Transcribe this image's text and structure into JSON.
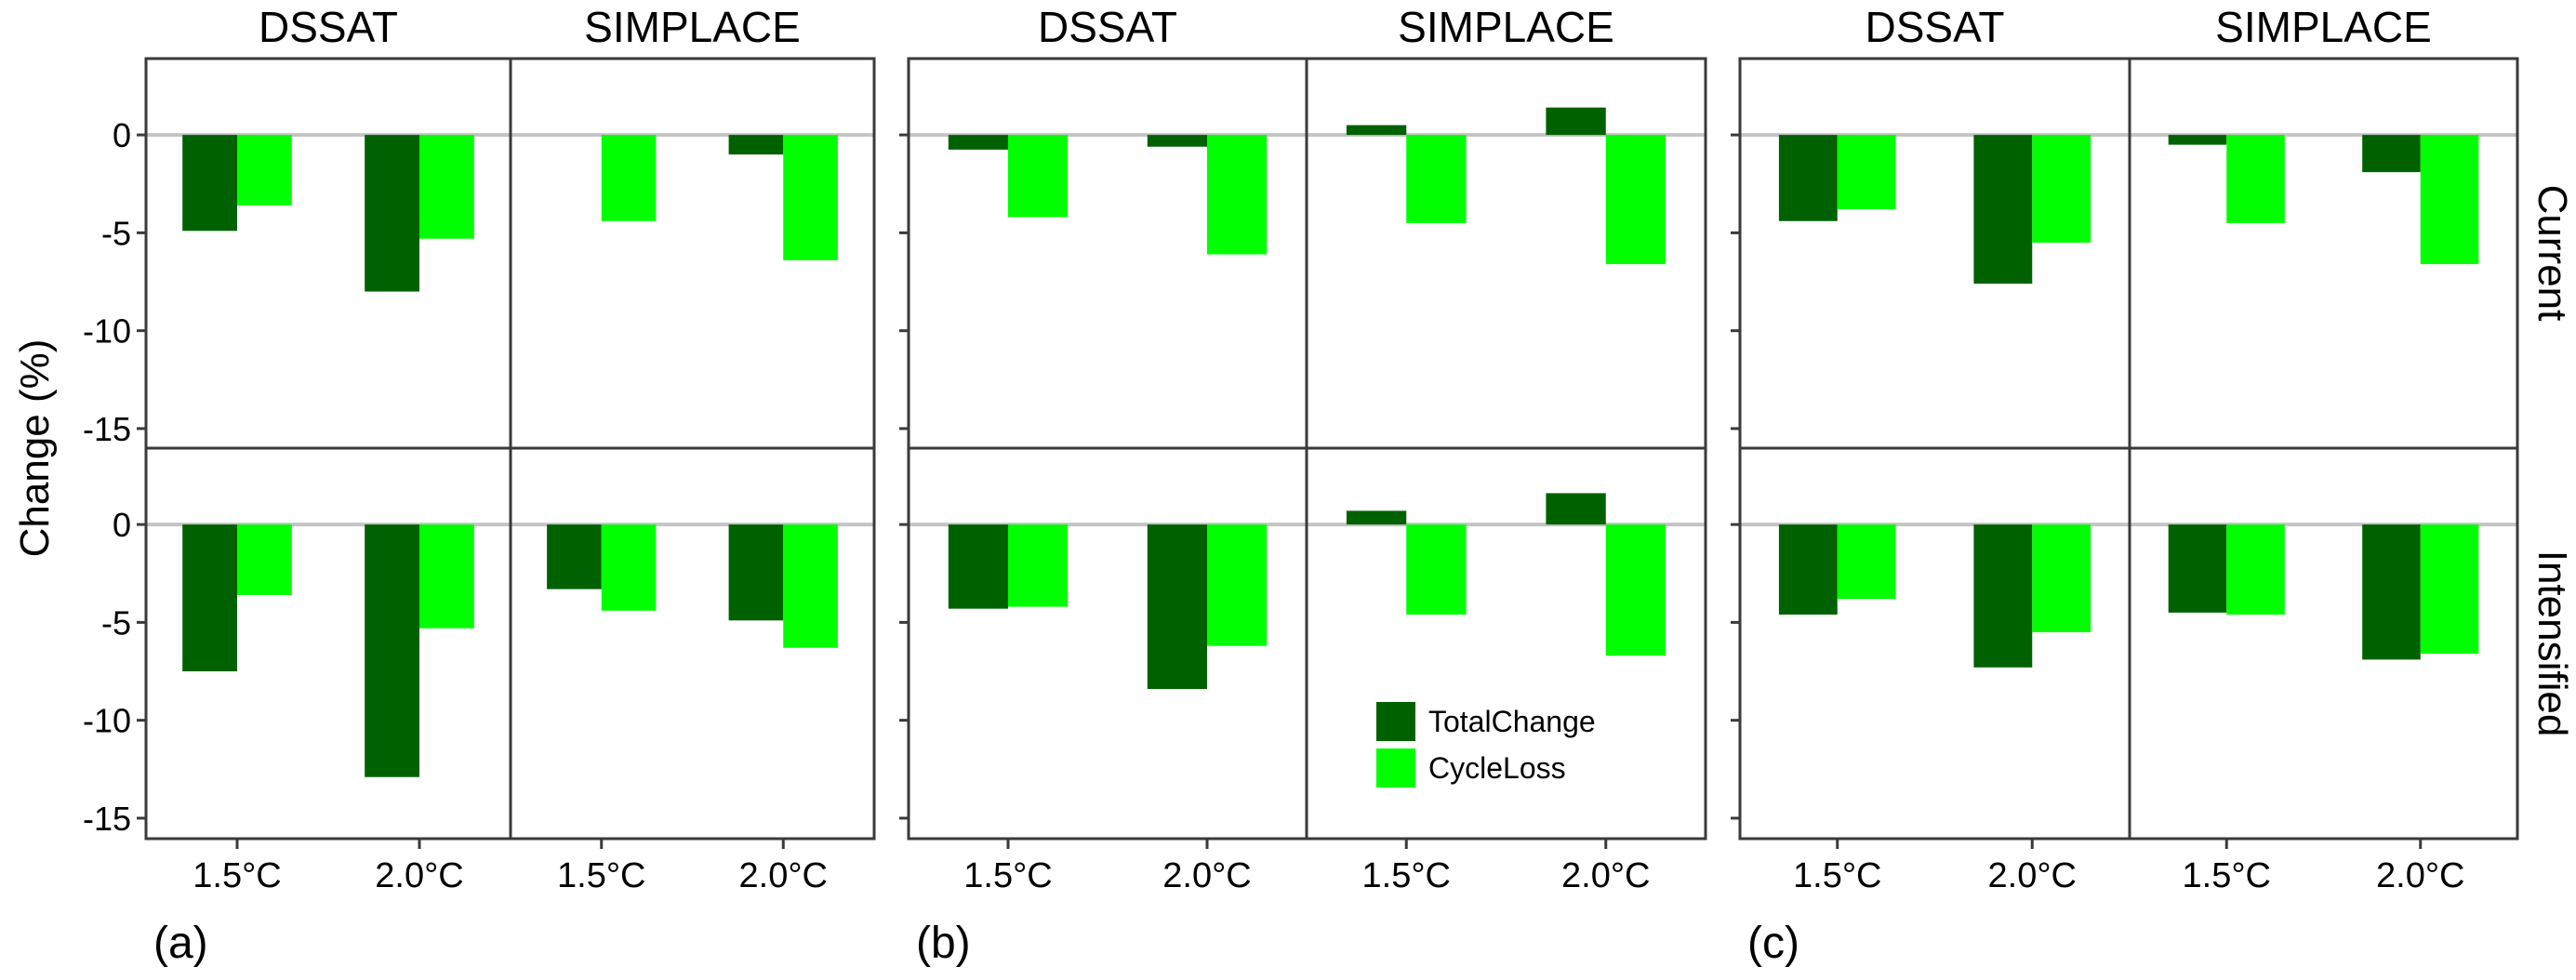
{
  "figure": {
    "y_axis_title": "Change (%)",
    "row_strips": [
      "Current",
      "Intensified"
    ],
    "col_strips": [
      "DSSAT",
      "SIMPLACE"
    ],
    "panel_tags": [
      "(a)",
      "(b)",
      "(c)"
    ],
    "legend": {
      "items": [
        {
          "label": "TotalChange",
          "color": "#006100"
        },
        {
          "label": "CycleLoss",
          "color": "#00ff00"
        }
      ]
    }
  },
  "chart_data": {
    "type": "bar",
    "layout": "faceted grouped bar chart, three panels (a),(b),(c), each a 2x2 facet grid (rows: management, cols: model)",
    "xlabel": "",
    "ylabel": "Change (%)",
    "categories": [
      "1.5°C",
      "2.0°C"
    ],
    "series_names": [
      "TotalChange",
      "CycleLoss"
    ],
    "colors": {
      "TotalChange": "#006100",
      "CycleLoss": "#00ff00"
    },
    "ylim": [
      -16,
      3.9
    ],
    "yticks": [
      0,
      -5,
      -10,
      -15
    ],
    "ytick_labels": [
      "0",
      "-5",
      "-10",
      "-15"
    ],
    "reference_line": 0,
    "grid": false,
    "legend_placement": "inside panel (b), SIMPLACE/Intensified facet, lower-left",
    "panels": [
      {
        "tag": "(a)",
        "facets": [
          {
            "model": "DSSAT",
            "management": "Current",
            "series": [
              {
                "name": "TotalChange",
                "values": [
                  -4.9,
                  -8.0
                ]
              },
              {
                "name": "CycleLoss",
                "values": [
                  -3.6,
                  -5.3
                ]
              }
            ]
          },
          {
            "model": "SIMPLACE",
            "management": "Current",
            "series": [
              {
                "name": "TotalChange",
                "values": [
                  0.0,
                  -1.0
                ]
              },
              {
                "name": "CycleLoss",
                "values": [
                  -4.4,
                  -6.4
                ]
              }
            ]
          },
          {
            "model": "DSSAT",
            "management": "Intensified",
            "series": [
              {
                "name": "TotalChange",
                "values": [
                  -7.5,
                  -12.9
                ]
              },
              {
                "name": "CycleLoss",
                "values": [
                  -3.6,
                  -5.3
                ]
              }
            ]
          },
          {
            "model": "SIMPLACE",
            "management": "Intensified",
            "series": [
              {
                "name": "TotalChange",
                "values": [
                  -3.3,
                  -4.9
                ]
              },
              {
                "name": "CycleLoss",
                "values": [
                  -4.4,
                  -6.3
                ]
              }
            ]
          }
        ]
      },
      {
        "tag": "(b)",
        "facets": [
          {
            "model": "DSSAT",
            "management": "Current",
            "series": [
              {
                "name": "TotalChange",
                "values": [
                  -0.75,
                  -0.6
                ]
              },
              {
                "name": "CycleLoss",
                "values": [
                  -4.2,
                  -6.1
                ]
              }
            ]
          },
          {
            "model": "SIMPLACE",
            "management": "Current",
            "series": [
              {
                "name": "TotalChange",
                "values": [
                  0.5,
                  1.4
                ]
              },
              {
                "name": "CycleLoss",
                "values": [
                  -4.5,
                  -6.6
                ]
              }
            ]
          },
          {
            "model": "DSSAT",
            "management": "Intensified",
            "series": [
              {
                "name": "TotalChange",
                "values": [
                  -4.3,
                  -8.4
                ]
              },
              {
                "name": "CycleLoss",
                "values": [
                  -4.2,
                  -6.2
                ]
              }
            ]
          },
          {
            "model": "SIMPLACE",
            "management": "Intensified",
            "series": [
              {
                "name": "TotalChange",
                "values": [
                  0.7,
                  1.6
                ]
              },
              {
                "name": "CycleLoss",
                "values": [
                  -4.6,
                  -6.7
                ]
              }
            ]
          }
        ]
      },
      {
        "tag": "(c)",
        "facets": [
          {
            "model": "DSSAT",
            "management": "Current",
            "series": [
              {
                "name": "TotalChange",
                "values": [
                  -4.4,
                  -7.6
                ]
              },
              {
                "name": "CycleLoss",
                "values": [
                  -3.8,
                  -5.5
                ]
              }
            ]
          },
          {
            "model": "SIMPLACE",
            "management": "Current",
            "series": [
              {
                "name": "TotalChange",
                "values": [
                  -0.5,
                  -1.9
                ]
              },
              {
                "name": "CycleLoss",
                "values": [
                  -4.5,
                  -6.6
                ]
              }
            ]
          },
          {
            "model": "DSSAT",
            "management": "Intensified",
            "series": [
              {
                "name": "TotalChange",
                "values": [
                  -4.6,
                  -7.3
                ]
              },
              {
                "name": "CycleLoss",
                "values": [
                  -3.8,
                  -5.5
                ]
              }
            ]
          },
          {
            "model": "SIMPLACE",
            "management": "Intensified",
            "series": [
              {
                "name": "TotalChange",
                "values": [
                  -4.5,
                  -6.9
                ]
              },
              {
                "name": "CycleLoss",
                "values": [
                  -4.6,
                  -6.6
                ]
              }
            ]
          }
        ]
      }
    ]
  }
}
